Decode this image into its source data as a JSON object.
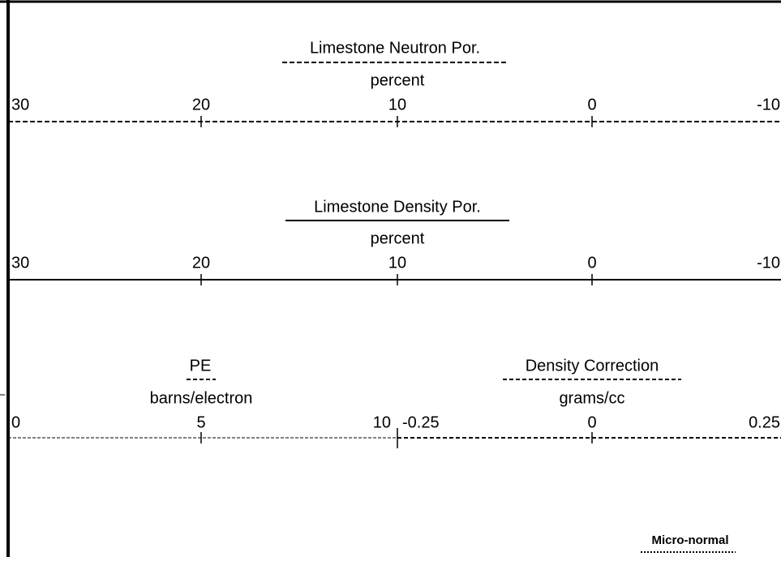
{
  "tracks": [
    {
      "title": "Limestone Neutron Por.",
      "unit": "percent",
      "ticks": [
        "30",
        "20",
        "10",
        "0",
        "-10"
      ]
    },
    {
      "title": "Limestone Density Por.",
      "unit": "percent",
      "ticks": [
        "30",
        "20",
        "10",
        "0",
        "-10"
      ]
    },
    {
      "curves": [
        {
          "title": "PE",
          "unit": "barns/electron",
          "ticks": [
            "0",
            "5",
            "10"
          ]
        },
        {
          "title": "Density Correction",
          "unit": "grams/cc",
          "ticks": [
            "-0.25",
            "0",
            "0.25"
          ]
        }
      ]
    }
  ],
  "footer": {
    "title": "Micro-normal"
  }
}
